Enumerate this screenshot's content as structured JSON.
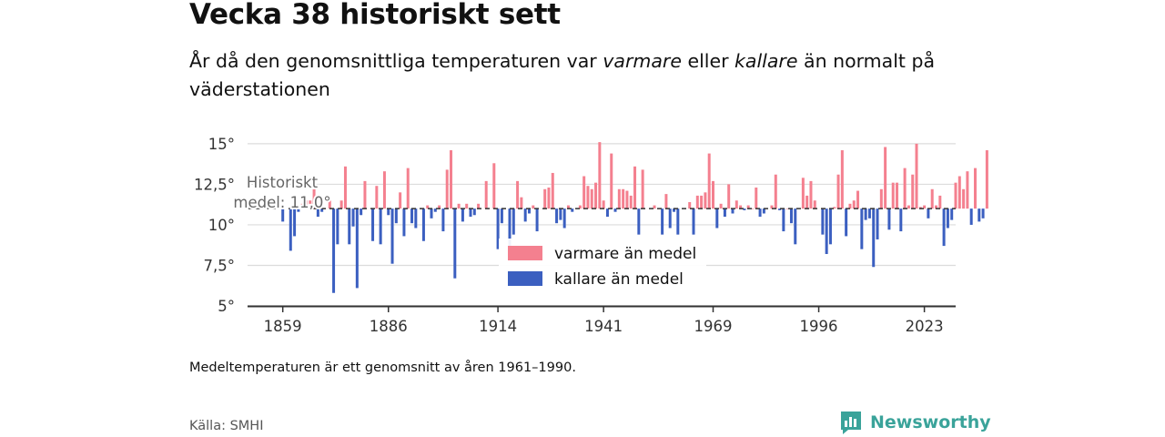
{
  "title": "Vecka 38 historiskt sett",
  "subtitle": {
    "part1": "År då den genomsnittliga temperaturen var ",
    "warm_word": "varmare",
    "part2": " eller ",
    "cold_word": "kallare",
    "part3": " än normalt på väderstationen"
  },
  "note": "Medeltemperaturen är ett genomsnitt av åren 1961–1990.",
  "source": "Källa: SMHI",
  "brand": "Newsworthy",
  "colors": {
    "warm": "#f4808f",
    "cold": "#3b5fc0",
    "text": "#111111",
    "brand": "#3aa39a"
  },
  "chart_data": {
    "type": "bar",
    "baseline": 11.0,
    "baseline_label_line1": "Historiskt",
    "baseline_label_line2": "medel: 11,0°",
    "ylim": [
      5,
      15.5
    ],
    "yticks": [
      5,
      7.5,
      10,
      12.5,
      15
    ],
    "ytick_labels": [
      "5°",
      "7,5°",
      "10°",
      "12,5°",
      "15°"
    ],
    "xticks": [
      1859,
      1886,
      1914,
      1941,
      1969,
      1996,
      2023
    ],
    "xlim": [
      1850,
      2031
    ],
    "grid": true,
    "legend_position": "center",
    "legend": [
      {
        "label": "varmare än medel",
        "color": "#f4808f"
      },
      {
        "label": "kallare än medel",
        "color": "#3b5fc0"
      }
    ],
    "series": [
      {
        "values": [
          [
            1859,
            10.2
          ],
          [
            1861,
            8.4
          ],
          [
            1862,
            9.3
          ],
          [
            1863,
            10.8
          ],
          [
            1864,
            11.3
          ],
          [
            1865,
            11.5
          ],
          [
            1866,
            11.5
          ],
          [
            1867,
            12.3
          ],
          [
            1868,
            10.5
          ],
          [
            1869,
            10.8
          ],
          [
            1871,
            11.5
          ],
          [
            1872,
            5.8
          ],
          [
            1873,
            8.8
          ],
          [
            1874,
            11.5
          ],
          [
            1875,
            13.6
          ],
          [
            1876,
            8.8
          ],
          [
            1877,
            9.9
          ],
          [
            1878,
            6.1
          ],
          [
            1879,
            10.6
          ],
          [
            1880,
            12.7
          ],
          [
            1882,
            9.0
          ],
          [
            1883,
            12.4
          ],
          [
            1884,
            8.8
          ],
          [
            1885,
            13.3
          ],
          [
            1886,
            10.6
          ],
          [
            1887,
            7.6
          ],
          [
            1888,
            10.1
          ],
          [
            1889,
            12.0
          ],
          [
            1890,
            9.3
          ],
          [
            1891,
            13.5
          ],
          [
            1892,
            10.1
          ],
          [
            1893,
            9.8
          ],
          [
            1895,
            9.0
          ],
          [
            1896,
            11.2
          ],
          [
            1897,
            10.4
          ],
          [
            1898,
            10.8
          ],
          [
            1899,
            11.2
          ],
          [
            1900,
            9.6
          ],
          [
            1901,
            13.4
          ],
          [
            1902,
            14.6
          ],
          [
            1903,
            6.7
          ],
          [
            1904,
            11.3
          ],
          [
            1905,
            10.2
          ],
          [
            1906,
            11.3
          ],
          [
            1907,
            10.5
          ],
          [
            1908,
            10.6
          ],
          [
            1909,
            11.3
          ],
          [
            1911,
            12.7
          ],
          [
            1913,
            13.8
          ],
          [
            1914,
            8.5
          ],
          [
            1915,
            10.1
          ],
          [
            1917,
            8.4
          ],
          [
            1918,
            9.4
          ],
          [
            1919,
            12.7
          ],
          [
            1920,
            11.7
          ],
          [
            1921,
            10.2
          ],
          [
            1922,
            10.7
          ],
          [
            1923,
            11.2
          ],
          [
            1924,
            9.6
          ],
          [
            1926,
            12.2
          ],
          [
            1927,
            12.3
          ],
          [
            1928,
            13.2
          ],
          [
            1929,
            10.1
          ],
          [
            1930,
            10.3
          ],
          [
            1931,
            9.8
          ],
          [
            1932,
            11.2
          ],
          [
            1933,
            10.8
          ],
          [
            1935,
            11.2
          ],
          [
            1936,
            13.0
          ],
          [
            1937,
            12.4
          ],
          [
            1938,
            12.2
          ],
          [
            1939,
            12.6
          ],
          [
            1940,
            15.1
          ],
          [
            1941,
            11.5
          ],
          [
            1942,
            10.5
          ],
          [
            1943,
            14.4
          ],
          [
            1944,
            10.8
          ],
          [
            1945,
            12.2
          ],
          [
            1946,
            12.2
          ],
          [
            1947,
            12.1
          ],
          [
            1948,
            11.8
          ],
          [
            1949,
            13.6
          ],
          [
            1950,
            9.4
          ],
          [
            1951,
            13.4
          ],
          [
            1954,
            11.2
          ],
          [
            1956,
            9.4
          ],
          [
            1957,
            11.9
          ],
          [
            1958,
            9.8
          ],
          [
            1959,
            10.8
          ],
          [
            1960,
            9.4
          ],
          [
            1963,
            11.4
          ],
          [
            1964,
            9.4
          ],
          [
            1965,
            11.8
          ],
          [
            1966,
            11.8
          ],
          [
            1967,
            12.0
          ],
          [
            1968,
            14.4
          ],
          [
            1969,
            12.7
          ],
          [
            1970,
            9.8
          ],
          [
            1971,
            11.3
          ],
          [
            1972,
            10.5
          ],
          [
            1973,
            12.5
          ],
          [
            1974,
            10.7
          ],
          [
            1975,
            11.5
          ],
          [
            1976,
            11.2
          ],
          [
            1977,
            10.9
          ],
          [
            1978,
            11.2
          ],
          [
            1979,
            11.0
          ],
          [
            1980,
            12.3
          ],
          [
            1981,
            10.5
          ],
          [
            1982,
            10.7
          ],
          [
            1984,
            11.2
          ],
          [
            1985,
            13.1
          ],
          [
            1986,
            10.9
          ],
          [
            1987,
            9.6
          ],
          [
            1988,
            11.0
          ],
          [
            1989,
            10.1
          ],
          [
            1990,
            8.8
          ],
          [
            1992,
            12.9
          ],
          [
            1993,
            11.8
          ],
          [
            1994,
            12.7
          ],
          [
            1995,
            11.5
          ],
          [
            1997,
            9.4
          ],
          [
            1998,
            8.2
          ],
          [
            1999,
            8.8
          ],
          [
            2000,
            11.1
          ],
          [
            2001,
            13.1
          ],
          [
            2002,
            14.6
          ],
          [
            2003,
            9.3
          ],
          [
            2004,
            11.3
          ],
          [
            2005,
            11.5
          ],
          [
            2006,
            12.1
          ],
          [
            2007,
            8.5
          ],
          [
            2008,
            10.3
          ],
          [
            2009,
            10.4
          ],
          [
            2010,
            7.4
          ],
          [
            2011,
            9.1
          ],
          [
            2012,
            12.2
          ],
          [
            2013,
            14.8
          ],
          [
            2014,
            9.7
          ],
          [
            2015,
            12.6
          ],
          [
            2016,
            12.6
          ],
          [
            2017,
            9.6
          ],
          [
            2018,
            13.5
          ],
          [
            2019,
            11.2
          ],
          [
            2020,
            13.1
          ],
          [
            2021,
            15.0
          ],
          [
            2022,
            11.1
          ],
          [
            2023,
            11.2
          ],
          [
            2024,
            10.4
          ],
          [
            2025,
            12.2
          ],
          [
            2026,
            11.2
          ],
          [
            2027,
            11.8
          ],
          [
            2028,
            8.7
          ],
          [
            2029,
            9.8
          ],
          [
            2030,
            10.3
          ],
          [
            2031,
            12.6
          ],
          [
            2032,
            13.0
          ],
          [
            2033,
            12.2
          ],
          [
            2034,
            13.3
          ],
          [
            2035,
            10.0
          ],
          [
            2036,
            13.5
          ],
          [
            2037,
            10.2
          ],
          [
            2038,
            10.4
          ],
          [
            2039,
            14.6
          ]
        ]
      }
    ]
  }
}
